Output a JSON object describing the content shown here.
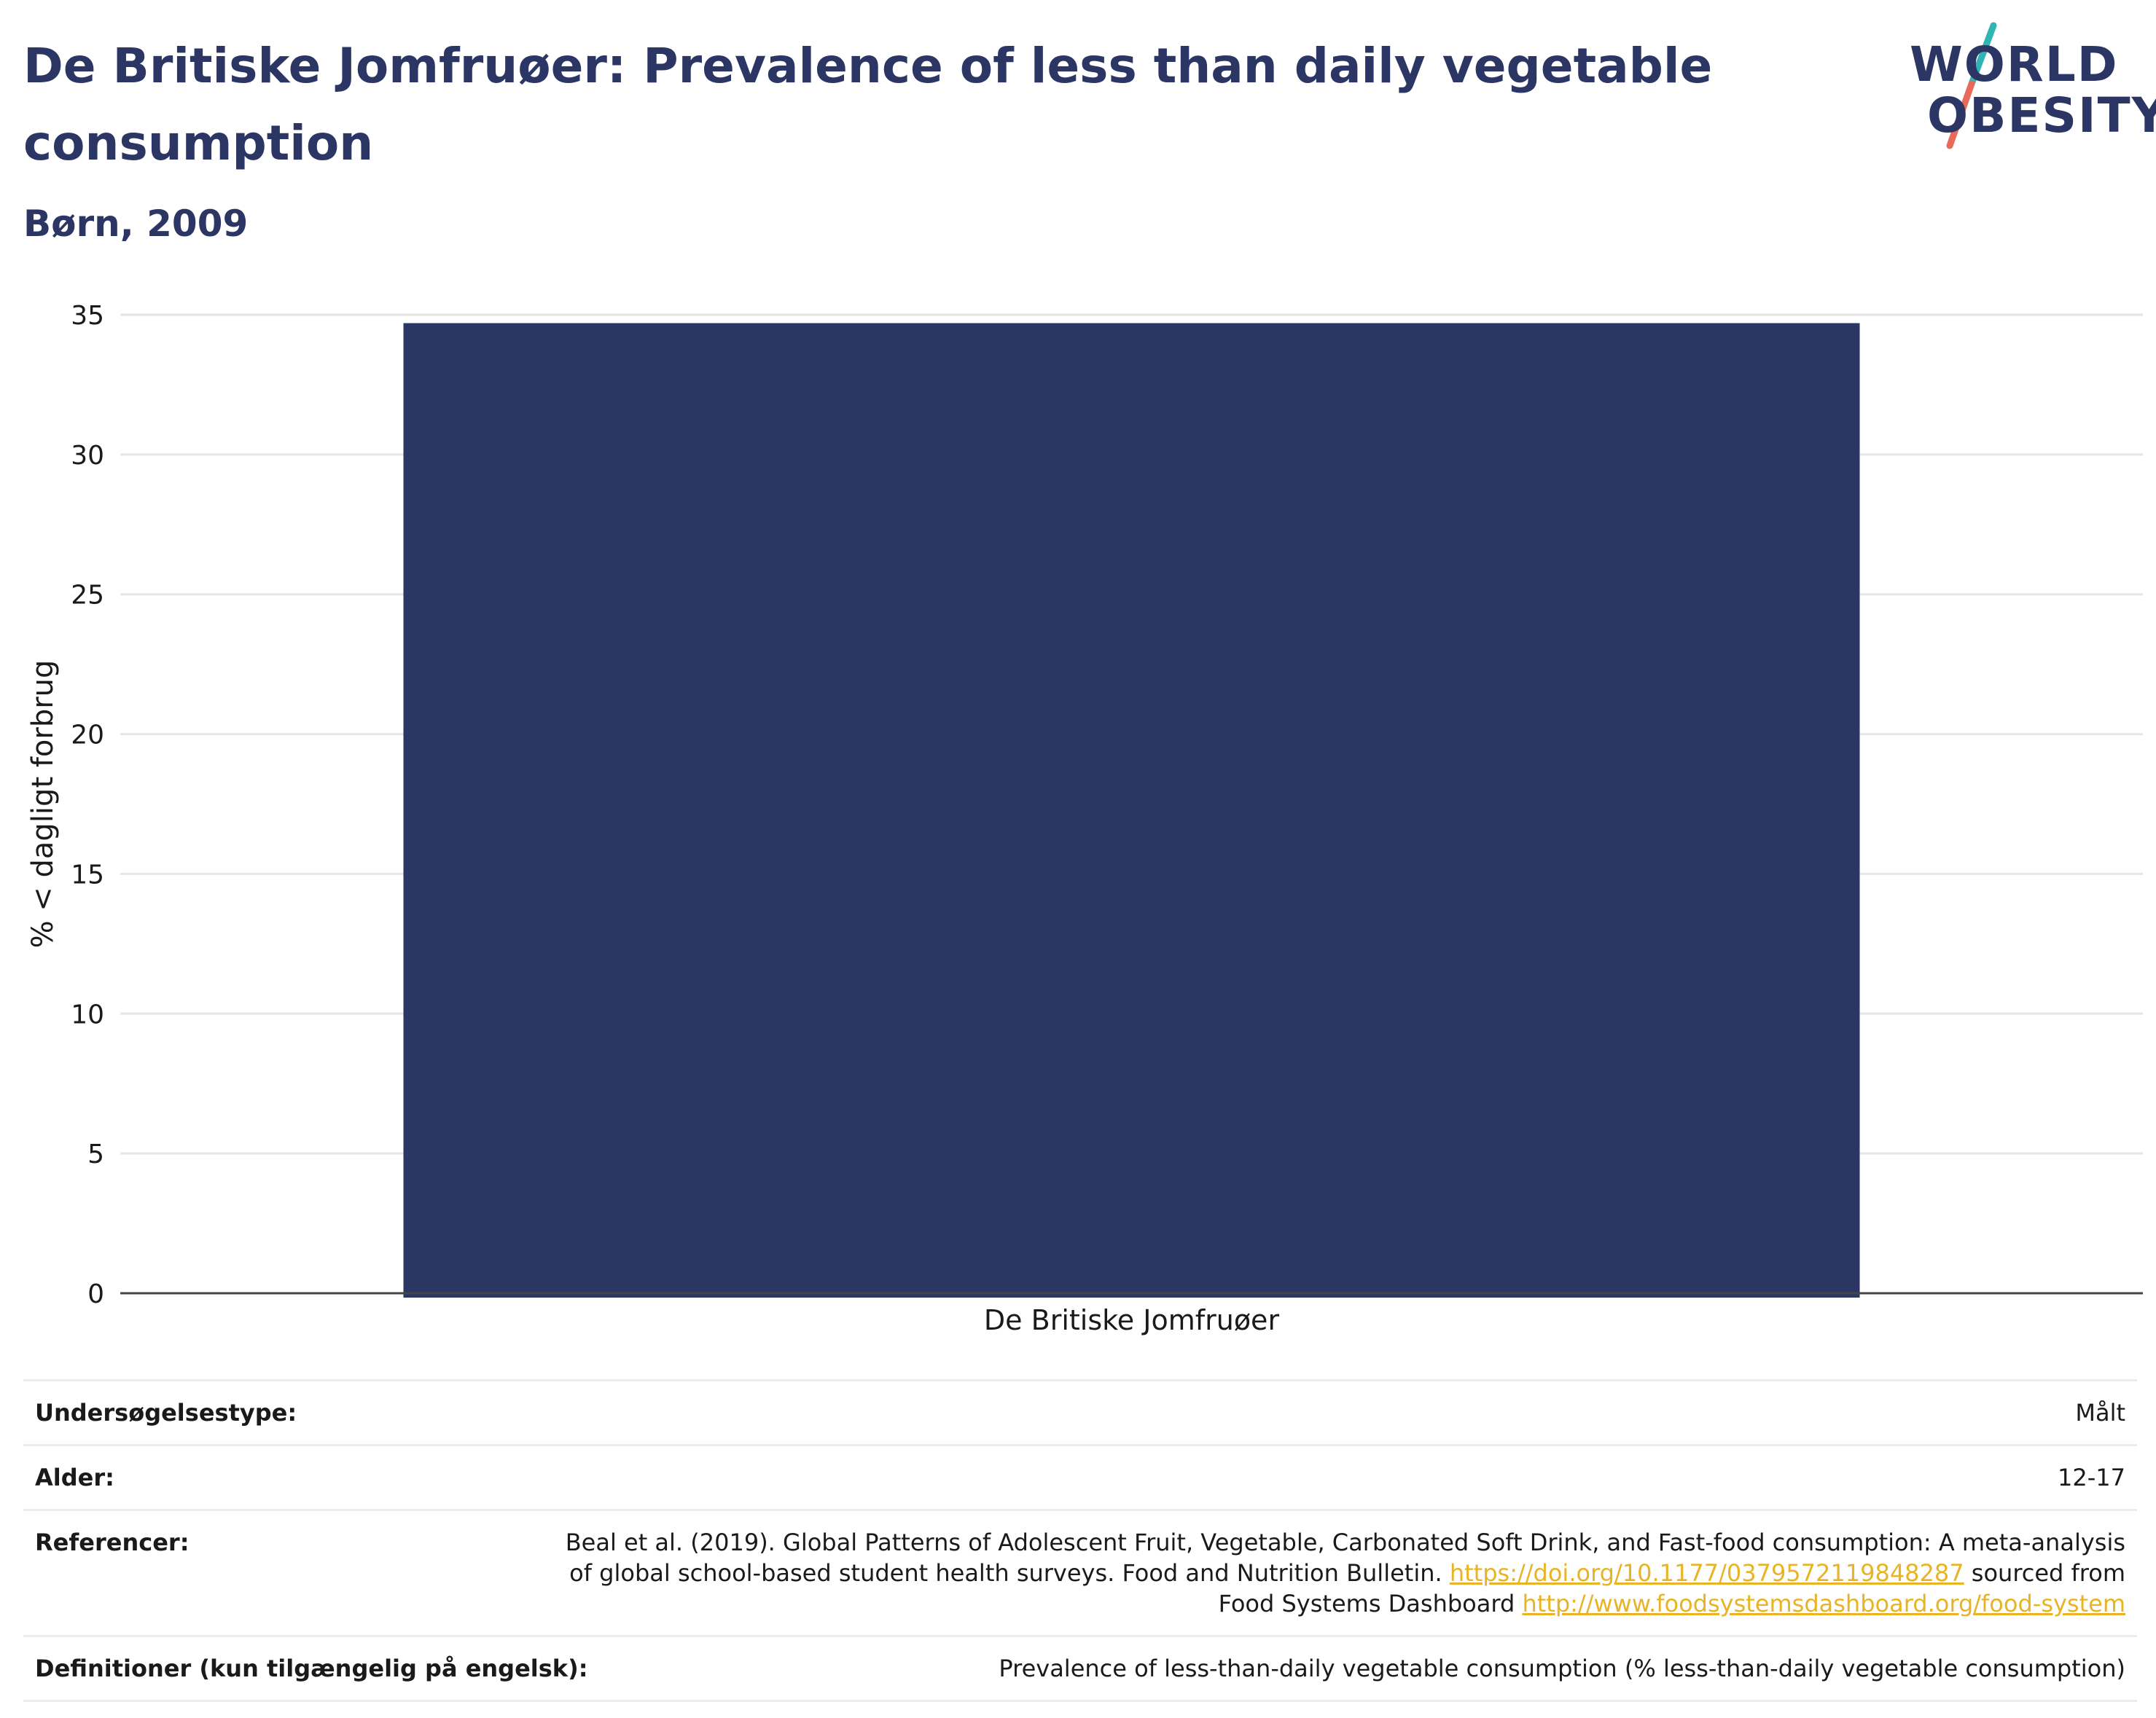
{
  "header": {
    "title": "De Britiske Jomfruøer: Prevalence of less than daily vegetable consumption",
    "subtitle": "Børn, 2009"
  },
  "logo": {
    "line1": "WORLD",
    "line2": "OBESITY",
    "colors": {
      "text": "#2b3664",
      "slash_top": "#2fb5b4",
      "slash_bottom": "#e86a5a"
    }
  },
  "chart_data": {
    "type": "bar",
    "categories": [
      "De Britiske Jomfruøer"
    ],
    "values": [
      34.7
    ],
    "ylabel": "% < dagligt forbrug",
    "ylim": [
      0,
      35
    ],
    "yticks": [
      0,
      5,
      10,
      15,
      20,
      25,
      30,
      35
    ],
    "grid": true,
    "bar_color": "#2b3664"
  },
  "meta": {
    "survey_type_label": "Undersøgelsestype:",
    "survey_type_value": "Målt",
    "age_label": "Alder:",
    "age_value": "12-17",
    "references_label": "Referencer:",
    "references_text_1": "Beal et al. (2019). Global Patterns of Adolescent Fruit, Vegetable, Carbonated Soft Drink, and Fast-food consumption: A meta-analysis of global school-based student health surveys. Food and Nutrition Bulletin. ",
    "references_link_1": "https://doi.org/10.1177/0379572119848287",
    "references_text_2": " sourced from Food Systems Dashboard ",
    "references_link_2": "http://www.foodsystemsdashboard.org/food-system",
    "definitions_label": "Definitioner (kun tilgængelig på engelsk):",
    "definitions_value": "Prevalence of less-than-daily vegetable consumption (% less-than-daily vegetable consumption)"
  }
}
